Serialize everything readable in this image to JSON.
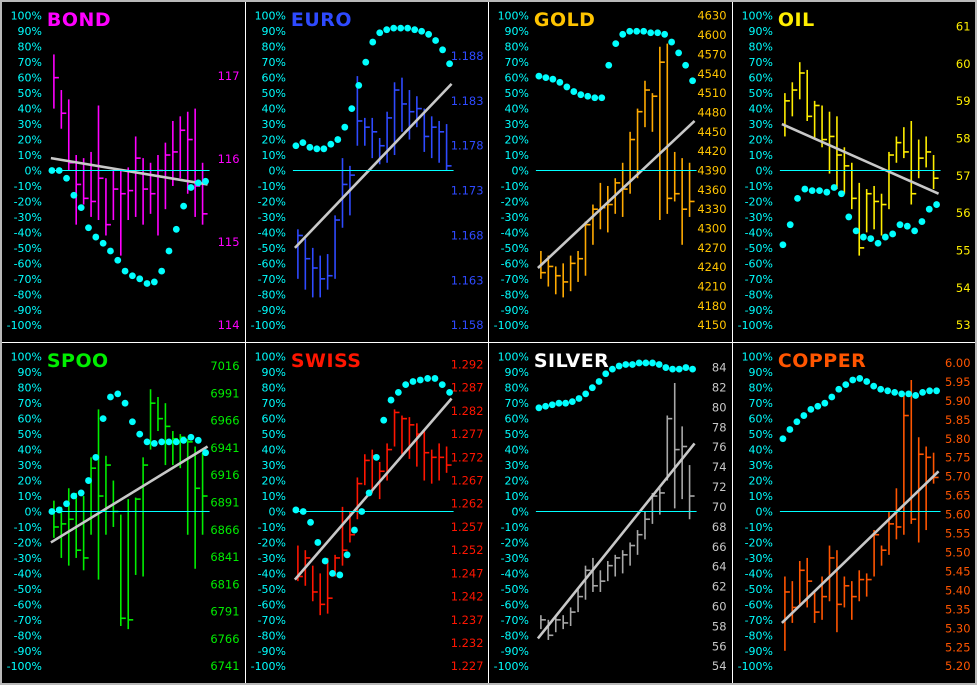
{
  "board": {
    "background": "#000000",
    "frame_color": "#b9b9b9",
    "divider_color": "#ffffff",
    "axis_text_color": "#00ffff",
    "zero_line_color": "#00ffff",
    "trend_line_color": "#c8c8c8",
    "dot_color": "#00ffff",
    "left_axis": {
      "max": 100,
      "min": -100,
      "step": 10,
      "suffix": "%"
    }
  },
  "chart_data": [
    {
      "type": "bar",
      "name": "BOND",
      "color": "#ff00ff",
      "right_axis": {
        "labels": [
          "117",
          "116",
          "115",
          "114"
        ],
        "first_pct": 61,
        "last_pct": -100
      },
      "dots_pct": [
        0,
        0,
        -5,
        -16,
        -24,
        -37,
        -43,
        -47,
        -52,
        -58,
        -65,
        -68,
        -70,
        -73,
        -72,
        -65,
        -52,
        -38,
        -23,
        -11,
        -8,
        -7
      ],
      "bars_pct": [
        [
          75,
          40,
          60
        ],
        [
          52,
          27,
          37
        ],
        [
          46,
          0,
          5
        ],
        [
          10,
          -35,
          -9
        ],
        [
          8,
          -22,
          -18
        ],
        [
          12,
          -30,
          -20
        ],
        [
          42,
          -32,
          -5
        ],
        [
          -5,
          -42,
          -35
        ],
        [
          0,
          -32,
          -12
        ],
        [
          0,
          -55,
          -15
        ],
        [
          2,
          -32,
          -13
        ],
        [
          22,
          -30,
          8
        ],
        [
          8,
          -35,
          -12
        ],
        [
          5,
          -28,
          -15
        ],
        [
          10,
          -42,
          0
        ],
        [
          18,
          -25,
          10
        ],
        [
          32,
          -10,
          12
        ],
        [
          35,
          -5,
          26
        ],
        [
          38,
          -15,
          20
        ],
        [
          40,
          -30,
          -10
        ],
        [
          5,
          -35,
          -28
        ]
      ],
      "trend_pct": [
        8,
        -9
      ]
    },
    {
      "type": "bar",
      "name": "EURO",
      "color": "#2e4aff",
      "right_axis": {
        "labels": [
          "1.188",
          "1.183",
          "1.178",
          "1.173",
          "1.168",
          "1.163",
          "1.158"
        ],
        "first_pct": 74,
        "last_pct": -100
      },
      "dots_pct": [
        16,
        18,
        15,
        14,
        14,
        17,
        20,
        28,
        40,
        55,
        70,
        83,
        89,
        91,
        92,
        92,
        92,
        91,
        90,
        88,
        84,
        78,
        69
      ],
      "bars_pct": [
        [
          -38,
          -70,
          -42
        ],
        [
          -44,
          -77,
          -57
        ],
        [
          -50,
          -82,
          -63
        ],
        [
          -55,
          -82,
          -70
        ],
        [
          -54,
          -77,
          -68
        ],
        [
          -29,
          -70,
          -32
        ],
        [
          8,
          -37,
          -9
        ],
        [
          3,
          -29,
          -3
        ],
        [
          61,
          16,
          32
        ],
        [
          34,
          16,
          28
        ],
        [
          34,
          8,
          25
        ],
        [
          21,
          4,
          16
        ],
        [
          38,
          5,
          34
        ],
        [
          57,
          10,
          52
        ],
        [
          60,
          25,
          43
        ],
        [
          52,
          20,
          38
        ],
        [
          48,
          28,
          40
        ],
        [
          40,
          12,
          22
        ],
        [
          35,
          8,
          28
        ],
        [
          32,
          5,
          25
        ],
        [
          30,
          0,
          3
        ]
      ],
      "trend_pct": [
        -50,
        56
      ]
    },
    {
      "type": "bar",
      "name": "GOLD",
      "color": "#ffc400",
      "bar_color": "#ffaa00",
      "right_axis": {
        "labels": [
          "4630",
          "4600",
          "4570",
          "4540",
          "4510",
          "4480",
          "4450",
          "4420",
          "4390",
          "4360",
          "4330",
          "4300",
          "4270",
          "4240",
          "4210",
          "4180",
          "4150"
        ],
        "first_pct": 100,
        "last_pct": -100
      },
      "dots_pct": [
        61,
        60,
        59,
        57,
        54,
        51,
        49,
        48,
        47,
        47,
        68,
        82,
        88,
        90,
        90,
        90,
        89,
        89,
        88,
        83,
        76,
        68,
        58
      ],
      "bars_pct": [
        [
          -52,
          -70,
          -66
        ],
        [
          -55,
          -75,
          -62
        ],
        [
          -62,
          -80,
          -68
        ],
        [
          -60,
          -82,
          -72
        ],
        [
          -55,
          -78,
          -60
        ],
        [
          -52,
          -72,
          -57
        ],
        [
          -33,
          -68,
          -35
        ],
        [
          -22,
          -48,
          -25
        ],
        [
          -8,
          -38,
          -24
        ],
        [
          -10,
          -40,
          -22
        ],
        [
          -5,
          -28,
          -8
        ],
        [
          5,
          -30,
          -12
        ],
        [
          25,
          -15,
          20
        ],
        [
          40,
          -5,
          38
        ],
        [
          58,
          28,
          52
        ],
        [
          50,
          25,
          48
        ],
        [
          80,
          -32,
          70
        ],
        [
          82,
          -28,
          -18
        ],
        [
          12,
          -20,
          -15
        ],
        [
          8,
          -48,
          -25
        ],
        [
          5,
          -30,
          -20
        ]
      ],
      "trend_pct": [
        -63,
        32
      ]
    },
    {
      "type": "bar",
      "name": "OIL",
      "color": "#ffee00",
      "right_axis": {
        "labels": [
          "61",
          "60",
          "59",
          "58",
          "57",
          "56",
          "55",
          "54",
          "53"
        ],
        "first_pct": 93,
        "last_pct": -100
      },
      "dots_pct": [
        -48,
        -35,
        -18,
        -12,
        -13,
        -13,
        -14,
        -11,
        -15,
        -30,
        -39,
        -43,
        -44,
        -47,
        -43,
        -41,
        -35,
        -36,
        -39,
        -33,
        -25,
        -22
      ],
      "bars_pct": [
        [
          50,
          22,
          45
        ],
        [
          57,
          35,
          52
        ],
        [
          70,
          46,
          63
        ],
        [
          65,
          32,
          35
        ],
        [
          45,
          20,
          42
        ],
        [
          42,
          15,
          20
        ],
        [
          38,
          -2,
          22
        ],
        [
          35,
          -12,
          10
        ],
        [
          15,
          -15,
          3
        ],
        [
          5,
          -25,
          -18
        ],
        [
          -8,
          -55,
          -50
        ],
        [
          -12,
          -40,
          -15
        ],
        [
          -10,
          -38,
          -20
        ],
        [
          -15,
          -42,
          -22
        ],
        [
          12,
          -25,
          10
        ],
        [
          22,
          5,
          18
        ],
        [
          28,
          8,
          12
        ],
        [
          32,
          -22,
          -15
        ],
        [
          20,
          -5,
          8
        ],
        [
          22,
          2,
          12
        ],
        [
          10,
          -12,
          -5
        ]
      ],
      "trend_pct": [
        30,
        -15
      ]
    },
    {
      "type": "bar",
      "name": "SPOO",
      "color": "#00ee00",
      "right_axis": {
        "labels": [
          "7016",
          "6991",
          "6966",
          "6941",
          "6916",
          "6891",
          "6866",
          "6841",
          "6816",
          "6791",
          "6766",
          "6741"
        ],
        "first_pct": 94,
        "last_pct": -100
      },
      "dots_pct": [
        0,
        1,
        5,
        10,
        12,
        20,
        35,
        60,
        74,
        76,
        70,
        58,
        50,
        45,
        44,
        45,
        45,
        45,
        46,
        48,
        46,
        38
      ],
      "bars_pct": [
        [
          7,
          -17,
          -10
        ],
        [
          3,
          -30,
          -8
        ],
        [
          15,
          -35,
          -5
        ],
        [
          12,
          -30,
          -25
        ],
        [
          10,
          -38,
          -30
        ],
        [
          35,
          -15,
          28
        ],
        [
          66,
          -44,
          10
        ],
        [
          36,
          -15,
          30
        ],
        [
          20,
          -10,
          0
        ],
        [
          -2,
          -74,
          -69
        ],
        [
          8,
          -76,
          -70
        ],
        [
          9,
          -41,
          8
        ],
        [
          35,
          -42,
          30
        ],
        [
          79,
          40,
          70
        ],
        [
          74,
          52,
          60
        ],
        [
          70,
          30,
          55
        ],
        [
          52,
          30,
          47
        ],
        [
          50,
          28,
          48
        ],
        [
          47,
          -15,
          45
        ],
        [
          42,
          -37,
          15
        ],
        [
          38,
          -15,
          10
        ]
      ],
      "trend_pct": [
        -20,
        42
      ]
    },
    {
      "type": "bar",
      "name": "SWISS",
      "color": "#ff1500",
      "right_axis": {
        "labels": [
          "1.292",
          "1.287",
          "1.282",
          "1.277",
          "1.272",
          "1.267",
          "1.262",
          "1.257",
          "1.252",
          "1.247",
          "1.242",
          "1.237",
          "1.232",
          "1.227"
        ],
        "first_pct": 95,
        "last_pct": -100
      },
      "dots_pct": [
        1,
        0,
        -7,
        -20,
        -32,
        -40,
        -41,
        -28,
        -12,
        0,
        12,
        35,
        59,
        72,
        77,
        82,
        84,
        85,
        86,
        86,
        82,
        77
      ],
      "bars_pct": [
        [
          -22,
          -45,
          -42
        ],
        [
          -25,
          -48,
          -30
        ],
        [
          -35,
          -58,
          -52
        ],
        [
          -40,
          -67,
          -60
        ],
        [
          -30,
          -66,
          -56
        ],
        [
          -28,
          -42,
          -30
        ],
        [
          3,
          -35,
          -25
        ],
        [
          0,
          -20,
          -15
        ],
        [
          22,
          -5,
          18
        ],
        [
          37,
          17,
          33
        ],
        [
          40,
          12,
          36
        ],
        [
          32,
          8,
          26
        ],
        [
          44,
          20,
          40
        ],
        [
          66,
          42,
          64
        ],
        [
          62,
          37,
          60
        ],
        [
          61,
          34,
          56
        ],
        [
          57,
          29,
          50
        ],
        [
          52,
          20,
          38
        ],
        [
          40,
          18,
          35
        ],
        [
          44,
          20,
          35
        ],
        [
          42,
          25,
          30
        ]
      ],
      "trend_pct": [
        -44,
        73
      ]
    },
    {
      "type": "bar",
      "name": "SILVER",
      "color": "#ffffff",
      "label_color": "#c8c8c8",
      "bar_color": "#a8a8a8",
      "right_axis": {
        "labels": [
          "84",
          "82",
          "80",
          "78",
          "76",
          "74",
          "72",
          "70",
          "68",
          "66",
          "64",
          "62",
          "60",
          "58",
          "56",
          "54"
        ],
        "first_pct": 93,
        "last_pct": -100
      },
      "dots_pct": [
        67,
        68,
        69,
        70,
        70,
        71,
        73,
        76,
        80,
        84,
        89,
        92,
        94,
        95,
        95,
        96,
        96,
        96,
        95,
        93,
        92,
        92,
        93,
        92
      ],
      "bars_pct": [
        [
          -67,
          -76,
          -70
        ],
        [
          -70,
          -83,
          -80
        ],
        [
          -68,
          -78,
          -70
        ],
        [
          -67,
          -76,
          -72
        ],
        [
          -62,
          -74,
          -65
        ],
        [
          -50,
          -65,
          -55
        ],
        [
          -35,
          -57,
          -38
        ],
        [
          -30,
          -52,
          -48
        ],
        [
          -38,
          -52,
          -45
        ],
        [
          -32,
          -45,
          -35
        ],
        [
          -28,
          -42,
          -30
        ],
        [
          -25,
          -40,
          -28
        ],
        [
          -20,
          -35,
          -22
        ],
        [
          -12,
          -28,
          -15
        ],
        [
          0,
          -18,
          -5
        ],
        [
          12,
          -8,
          10
        ],
        [
          15,
          -2,
          12
        ],
        [
          62,
          20,
          60
        ],
        [
          83,
          2,
          40
        ],
        [
          55,
          8,
          42
        ],
        [
          30,
          -5,
          10
        ]
      ],
      "trend_pct": [
        -82,
        44
      ]
    },
    {
      "type": "bar",
      "name": "COPPER",
      "color": "#ff5500",
      "right_axis": {
        "labels": [
          "6.00",
          "5.95",
          "5.90",
          "5.85",
          "5.80",
          "5.75",
          "5.70",
          "5.65",
          "5.60",
          "5.55",
          "5.50",
          "5.45",
          "5.40",
          "5.35",
          "5.30",
          "5.25",
          "5.20"
        ],
        "first_pct": 96,
        "last_pct": -100
      },
      "dots_pct": [
        47,
        53,
        58,
        62,
        66,
        68,
        70,
        74,
        79,
        82,
        85,
        86,
        84,
        81,
        79,
        78,
        77,
        76,
        76,
        75,
        77,
        78,
        78
      ],
      "bars_pct": [
        [
          -42,
          -90,
          -52
        ],
        [
          -45,
          -72,
          -62
        ],
        [
          -32,
          -60,
          -38
        ],
        [
          -30,
          -62,
          -45
        ],
        [
          -52,
          -72,
          -65
        ],
        [
          -42,
          -70,
          -55
        ],
        [
          -22,
          -58,
          -30
        ],
        [
          -25,
          -78,
          -60
        ],
        [
          -42,
          -62,
          -48
        ],
        [
          -45,
          -70,
          -55
        ],
        [
          -38,
          -58,
          -44
        ],
        [
          -40,
          -55,
          -44
        ],
        [
          -12,
          -42,
          -15
        ],
        [
          -22,
          -35,
          -25
        ],
        [
          0,
          -28,
          -8
        ],
        [
          15,
          -18,
          -10
        ],
        [
          75,
          -15,
          62
        ],
        [
          85,
          -8,
          -5
        ],
        [
          48,
          -20,
          37
        ],
        [
          42,
          -12,
          35
        ],
        [
          38,
          18,
          22
        ]
      ],
      "trend_pct": [
        -72,
        26
      ]
    }
  ]
}
